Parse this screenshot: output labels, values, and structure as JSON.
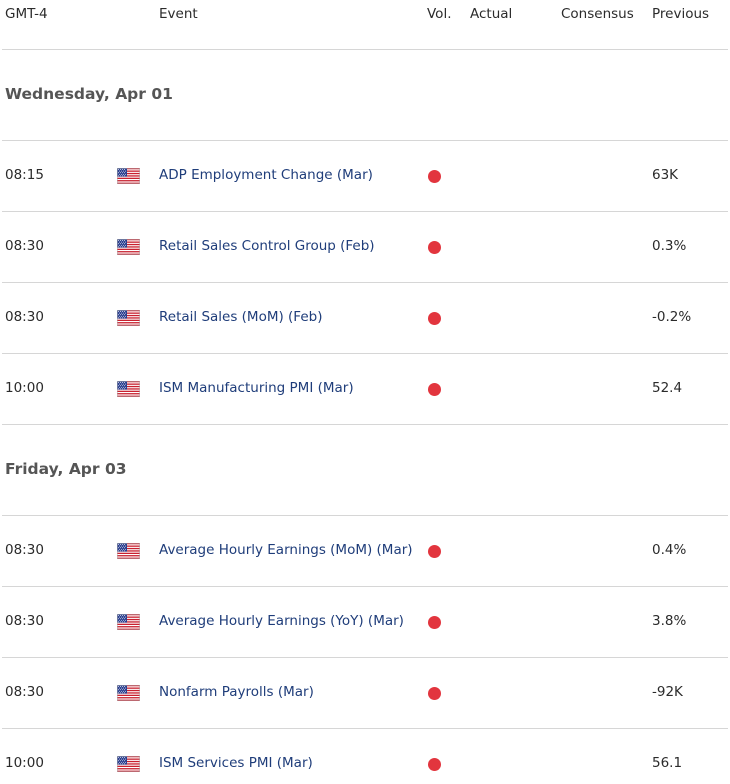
{
  "header": {
    "timezone": "GMT-4",
    "event": "Event",
    "vol": "Vol.",
    "actual": "Actual",
    "consensus": "Consensus",
    "previous": "Previous"
  },
  "colors": {
    "event_text": "#1f3d7a",
    "volatility_high": "#e2353e",
    "divider": "#d6d6d6"
  },
  "days": [
    {
      "title": "Wednesday, Apr 01",
      "events": [
        {
          "time": "08:15",
          "country_flag": "us-flag-icon",
          "name": "ADP Employment Change (Mar)",
          "volatility": "high",
          "actual": "",
          "consensus": "",
          "previous": "63K"
        },
        {
          "time": "08:30",
          "country_flag": "us-flag-icon",
          "name": "Retail Sales Control Group (Feb)",
          "volatility": "high",
          "actual": "",
          "consensus": "",
          "previous": "0.3%"
        },
        {
          "time": "08:30",
          "country_flag": "us-flag-icon",
          "name": "Retail Sales (MoM) (Feb)",
          "volatility": "high",
          "actual": "",
          "consensus": "",
          "previous": "-0.2%"
        },
        {
          "time": "10:00",
          "country_flag": "us-flag-icon",
          "name": "ISM Manufacturing PMI (Mar)",
          "volatility": "high",
          "actual": "",
          "consensus": "",
          "previous": "52.4"
        }
      ]
    },
    {
      "title": "Friday, Apr 03",
      "events": [
        {
          "time": "08:30",
          "country_flag": "us-flag-icon",
          "name": "Average Hourly Earnings (MoM) (Mar)",
          "volatility": "high",
          "actual": "",
          "consensus": "",
          "previous": "0.4%"
        },
        {
          "time": "08:30",
          "country_flag": "us-flag-icon",
          "name": "Average Hourly Earnings (YoY) (Mar)",
          "volatility": "high",
          "actual": "",
          "consensus": "",
          "previous": "3.8%"
        },
        {
          "time": "08:30",
          "country_flag": "us-flag-icon",
          "name": "Nonfarm Payrolls (Mar)",
          "volatility": "high",
          "actual": "",
          "consensus": "",
          "previous": "-92K"
        },
        {
          "time": "10:00",
          "country_flag": "us-flag-icon",
          "name": "ISM Services PMI (Mar)",
          "volatility": "high",
          "actual": "",
          "consensus": "",
          "previous": "56.1"
        }
      ]
    }
  ]
}
